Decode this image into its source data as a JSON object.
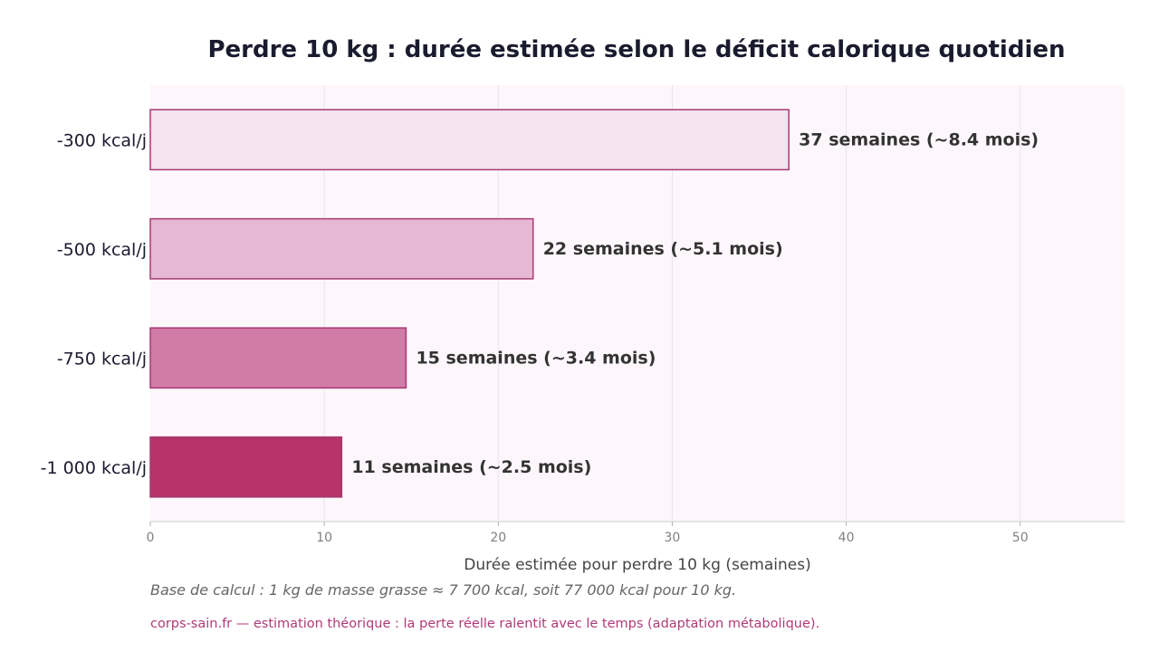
{
  "chart_data": {
    "type": "bar",
    "orientation": "horizontal",
    "title": "Perdre 10 kg : durée estimée selon le déficit calorique quotidien",
    "xlabel": "Durée estimée pour perdre 10 kg (semaines)",
    "ylabel": "",
    "xlim": [
      0,
      56
    ],
    "xticks": [
      0,
      10,
      20,
      30,
      40,
      50
    ],
    "grid": "vertical",
    "categories": [
      "-300 kcal/j",
      "-500 kcal/j",
      "-750 kcal/j",
      "-1 000 kcal/j"
    ],
    "values": [
      36.7,
      22,
      14.7,
      11
    ],
    "data_labels": [
      "37 semaines  (~8.4 mois)",
      "22 semaines  (~5.1 mois)",
      "15 semaines  (~3.4 mois)",
      "11 semaines  (~2.5 mois)"
    ],
    "bar_colors": [
      "#f5e3f2",
      "#e6b8d4",
      "#d17ba7",
      "#b63269"
    ],
    "bar_edge_color": "#a83a72",
    "plot_background": "#fdf7fc"
  },
  "notes": {
    "calc_basis": "Base de calcul : 1 kg de masse grasse ≈ 7 700 kcal, soit 77 000 kcal pour 10 kg.",
    "source": "corps-sain.fr — estimation théorique : la perte réelle ralentit avec le temps (adaptation métabolique)."
  }
}
